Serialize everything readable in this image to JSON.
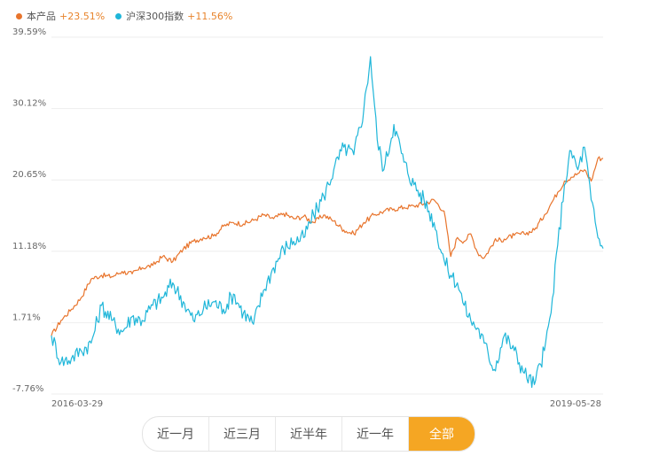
{
  "legend": [
    {
      "name": "本产品",
      "change": "+23.51%",
      "color": "#e8742c"
    },
    {
      "name": "沪深300指数",
      "change": "+11.56%",
      "color": "#1fb6d9"
    }
  ],
  "tabs": [
    {
      "label": "近一月",
      "active": false
    },
    {
      "label": "近三月",
      "active": false
    },
    {
      "label": "近半年",
      "active": false
    },
    {
      "label": "近一年",
      "active": false
    },
    {
      "label": "全部",
      "active": true
    }
  ],
  "colors": {
    "accent": "#f5a623",
    "product": "#e8742c",
    "index": "#1fb6d9",
    "grid": "#eeeeee"
  },
  "chart_data": {
    "type": "line",
    "xlabel": "",
    "ylabel": "",
    "x_range": [
      "2016-03-29",
      "2019-05-28"
    ],
    "x_tick_labels": [
      "2016-03-29",
      "2019-05-28"
    ],
    "y_ticks": [
      -7.76,
      1.71,
      11.18,
      20.65,
      30.12,
      39.59
    ],
    "y_tick_labels": [
      "-7.76%",
      "1.71%",
      "11.18%",
      "20.65%",
      "30.12%",
      "39.59%"
    ],
    "ylim": [
      -7.76,
      39.59
    ],
    "grid": true,
    "legend_position": "top-left",
    "series": [
      {
        "name": "本产品",
        "color": "#e8742c",
        "points": [
          [
            "2016-03-29",
            0.0
          ],
          [
            "2016-04-18",
            2.0
          ],
          [
            "2016-05-10",
            3.5
          ],
          [
            "2016-05-30",
            5.0
          ],
          [
            "2016-06-20",
            7.5
          ],
          [
            "2016-07-12",
            8.0
          ],
          [
            "2016-08-02",
            7.8
          ],
          [
            "2016-08-24",
            8.5
          ],
          [
            "2016-09-14",
            8.2
          ],
          [
            "2016-10-05",
            9.0
          ],
          [
            "2016-10-27",
            9.3
          ],
          [
            "2016-11-17",
            10.5
          ],
          [
            "2016-12-08",
            9.8
          ],
          [
            "2016-12-30",
            11.5
          ],
          [
            "2017-01-20",
            12.5
          ],
          [
            "2017-02-10",
            13.0
          ],
          [
            "2017-03-03",
            13.2
          ],
          [
            "2017-03-24",
            14.5
          ],
          [
            "2017-04-14",
            15.0
          ],
          [
            "2017-05-05",
            14.8
          ],
          [
            "2017-05-26",
            15.3
          ],
          [
            "2017-06-16",
            16.0
          ],
          [
            "2017-07-07",
            15.5
          ],
          [
            "2017-07-28",
            16.2
          ],
          [
            "2017-08-18",
            15.5
          ],
          [
            "2017-09-08",
            15.8
          ],
          [
            "2017-09-29",
            15.0
          ],
          [
            "2017-10-20",
            16.0
          ],
          [
            "2017-11-10",
            15.2
          ],
          [
            "2017-12-01",
            14.0
          ],
          [
            "2017-12-22",
            13.5
          ],
          [
            "2018-01-12",
            15.0
          ],
          [
            "2018-02-02",
            16.0
          ],
          [
            "2018-02-23",
            16.5
          ],
          [
            "2018-03-16",
            16.8
          ],
          [
            "2018-04-06",
            17.0
          ],
          [
            "2018-04-27",
            17.2
          ],
          [
            "2018-05-18",
            17.5
          ],
          [
            "2018-06-08",
            18.0
          ],
          [
            "2018-06-29",
            16.5
          ],
          [
            "2018-07-13",
            10.5
          ],
          [
            "2018-07-27",
            13.0
          ],
          [
            "2018-08-10",
            12.5
          ],
          [
            "2018-08-24",
            13.5
          ],
          [
            "2018-09-07",
            11.0
          ],
          [
            "2018-09-21",
            10.3
          ],
          [
            "2018-10-12",
            12.5
          ],
          [
            "2018-11-02",
            12.8
          ],
          [
            "2018-11-23",
            13.3
          ],
          [
            "2018-12-14",
            13.5
          ],
          [
            "2019-01-04",
            14.0
          ],
          [
            "2019-01-25",
            16.0
          ],
          [
            "2019-02-08",
            17.5
          ],
          [
            "2019-02-22",
            19.0
          ],
          [
            "2019-03-08",
            20.5
          ],
          [
            "2019-03-22",
            21.0
          ],
          [
            "2019-04-05",
            21.5
          ],
          [
            "2019-04-19",
            22.0
          ],
          [
            "2019-05-03",
            20.5
          ],
          [
            "2019-05-17",
            23.5
          ],
          [
            "2019-05-28",
            23.51
          ]
        ]
      },
      {
        "name": "沪深300指数",
        "color": "#1fb6d9",
        "points": [
          [
            "2016-03-29",
            0.0
          ],
          [
            "2016-04-18",
            -3.5
          ],
          [
            "2016-05-10",
            -3.0
          ],
          [
            "2016-05-30",
            -2.0
          ],
          [
            "2016-06-20",
            -1.0
          ],
          [
            "2016-07-12",
            4.0
          ],
          [
            "2016-08-02",
            2.0
          ],
          [
            "2016-08-24",
            0.5
          ],
          [
            "2016-09-14",
            2.5
          ],
          [
            "2016-10-05",
            2.0
          ],
          [
            "2016-10-27",
            4.0
          ],
          [
            "2016-11-17",
            5.0
          ],
          [
            "2016-12-08",
            7.0
          ],
          [
            "2016-12-30",
            4.5
          ],
          [
            "2017-01-20",
            2.0
          ],
          [
            "2017-02-10",
            3.5
          ],
          [
            "2017-03-03",
            4.5
          ],
          [
            "2017-03-24",
            3.5
          ],
          [
            "2017-04-14",
            5.5
          ],
          [
            "2017-05-05",
            3.0
          ],
          [
            "2017-05-26",
            1.5
          ],
          [
            "2017-06-16",
            6.0
          ],
          [
            "2017-07-07",
            9.0
          ],
          [
            "2017-07-28",
            11.5
          ],
          [
            "2017-08-18",
            12.5
          ],
          [
            "2017-09-08",
            13.0
          ],
          [
            "2017-09-29",
            16.0
          ],
          [
            "2017-10-20",
            18.5
          ],
          [
            "2017-11-10",
            22.0
          ],
          [
            "2017-12-01",
            25.0
          ],
          [
            "2017-12-22",
            24.0
          ],
          [
            "2018-01-12",
            30.0
          ],
          [
            "2018-01-26",
            37.0
          ],
          [
            "2018-02-09",
            26.0
          ],
          [
            "2018-02-23",
            22.0
          ],
          [
            "2018-03-16",
            28.0
          ],
          [
            "2018-04-06",
            23.0
          ],
          [
            "2018-04-27",
            20.0
          ],
          [
            "2018-05-18",
            18.0
          ],
          [
            "2018-06-08",
            15.0
          ],
          [
            "2018-06-29",
            10.0
          ],
          [
            "2018-07-13",
            8.0
          ],
          [
            "2018-07-27",
            7.0
          ],
          [
            "2018-08-10",
            4.0
          ],
          [
            "2018-08-24",
            2.0
          ],
          [
            "2018-09-07",
            1.0
          ],
          [
            "2018-09-21",
            -1.0
          ],
          [
            "2018-10-12",
            -4.5
          ],
          [
            "2018-11-02",
            0.0
          ],
          [
            "2018-11-23",
            -2.0
          ],
          [
            "2018-12-14",
            -5.0
          ],
          [
            "2019-01-04",
            -6.5
          ],
          [
            "2019-01-25",
            -2.0
          ],
          [
            "2019-02-08",
            3.0
          ],
          [
            "2019-02-22",
            12.0
          ],
          [
            "2019-03-08",
            20.0
          ],
          [
            "2019-03-22",
            24.5
          ],
          [
            "2019-04-05",
            22.0
          ],
          [
            "2019-04-19",
            25.0
          ],
          [
            "2019-05-03",
            18.0
          ],
          [
            "2019-05-17",
            13.0
          ],
          [
            "2019-05-28",
            11.56
          ]
        ]
      }
    ]
  }
}
